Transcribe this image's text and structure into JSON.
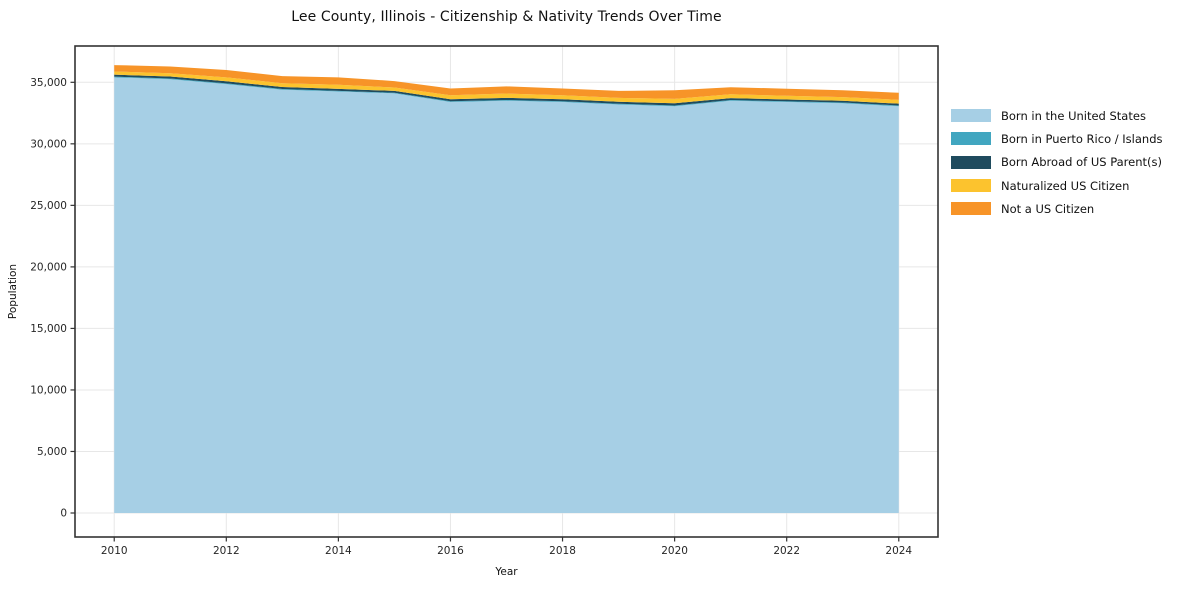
{
  "chart_data": {
    "type": "area",
    "stacked": true,
    "title": "Lee County, Illinois - Citizenship & Nativity Trends Over Time",
    "xlabel": "Year",
    "ylabel": "Population",
    "x": [
      2010,
      2011,
      2012,
      2013,
      2014,
      2015,
      2016,
      2017,
      2018,
      2019,
      2020,
      2021,
      2022,
      2023,
      2024
    ],
    "series": [
      {
        "name": "Born in the United States",
        "color": "#A6CFE5",
        "values": [
          35400,
          35250,
          34850,
          34400,
          34250,
          34100,
          33400,
          33500,
          33400,
          33200,
          33050,
          33500,
          33400,
          33300,
          33050
        ]
      },
      {
        "name": "Born in Puerto Rico / Islands",
        "color": "#41A6C0",
        "values": [
          60,
          60,
          65,
          60,
          55,
          50,
          60,
          65,
          60,
          55,
          70,
          60,
          55,
          60,
          65
        ]
      },
      {
        "name": "Born Abroad of US Parent(s)",
        "color": "#1F4B5E",
        "values": [
          160,
          160,
          170,
          160,
          165,
          150,
          160,
          170,
          165,
          160,
          180,
          155,
          150,
          145,
          150
        ]
      },
      {
        "name": "Naturalized US Citizen",
        "color": "#FCC32E",
        "values": [
          260,
          270,
          320,
          300,
          330,
          280,
          330,
          350,
          325,
          320,
          350,
          310,
          300,
          290,
          310
        ]
      },
      {
        "name": "Not a US Citizen",
        "color": "#F79428",
        "values": [
          520,
          540,
          595,
          580,
          600,
          520,
          550,
          585,
          550,
          565,
          700,
          575,
          575,
          555,
          575
        ]
      }
    ],
    "xlim": [
      2009.3,
      2024.7
    ],
    "ylim": [
      -1950,
      37950
    ],
    "xticks": [
      2010,
      2012,
      2014,
      2016,
      2018,
      2020,
      2022,
      2024
    ],
    "xtick_labels": [
      "2010",
      "2012",
      "2014",
      "2016",
      "2018",
      "2020",
      "2022",
      "2024"
    ],
    "yticks": [
      0,
      5000,
      10000,
      15000,
      20000,
      25000,
      30000,
      35000
    ],
    "ytick_labels": [
      "0",
      "5,000",
      "10,000",
      "15,000",
      "20,000",
      "25,000",
      "30,000",
      "35,000"
    ],
    "grid": true,
    "legend_position": "right-outside",
    "colors": {
      "background": "#ffffff",
      "grid": "#e7e7e7",
      "spine": "#333333",
      "tick": "#333333",
      "tick_label": "#262626",
      "title": "#111111"
    }
  }
}
